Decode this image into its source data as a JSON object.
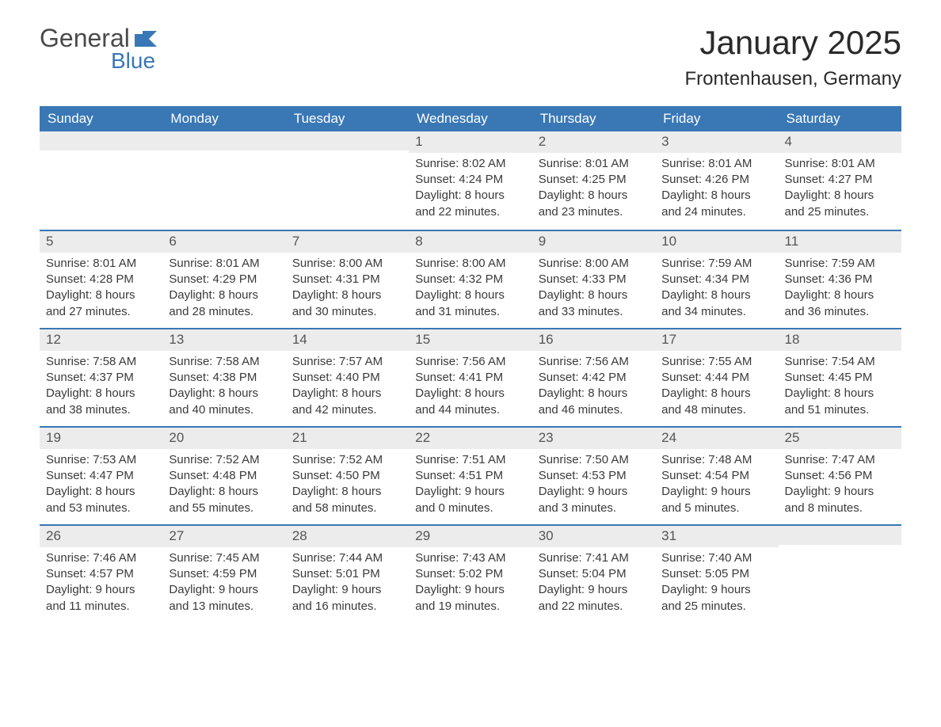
{
  "logo": {
    "text1": "General",
    "text2": "Blue"
  },
  "title": "January 2025",
  "location": "Frontenhausen, Germany",
  "colors": {
    "header_bg": "#3a78b5",
    "header_text": "#ffffff",
    "daynum_bg": "#ececec",
    "body_text": "#3a3a3a",
    "logo_gray": "#4a4a4a",
    "logo_blue": "#3a78b5",
    "border": "#3a78b5"
  },
  "day_headers": [
    "Sunday",
    "Monday",
    "Tuesday",
    "Wednesday",
    "Thursday",
    "Friday",
    "Saturday"
  ],
  "weeks": [
    [
      {
        "day": "",
        "sunrise": "",
        "sunset": "",
        "daylight": ""
      },
      {
        "day": "",
        "sunrise": "",
        "sunset": "",
        "daylight": ""
      },
      {
        "day": "",
        "sunrise": "",
        "sunset": "",
        "daylight": ""
      },
      {
        "day": "1",
        "sunrise": "Sunrise: 8:02 AM",
        "sunset": "Sunset: 4:24 PM",
        "daylight": "Daylight: 8 hours and 22 minutes."
      },
      {
        "day": "2",
        "sunrise": "Sunrise: 8:01 AM",
        "sunset": "Sunset: 4:25 PM",
        "daylight": "Daylight: 8 hours and 23 minutes."
      },
      {
        "day": "3",
        "sunrise": "Sunrise: 8:01 AM",
        "sunset": "Sunset: 4:26 PM",
        "daylight": "Daylight: 8 hours and 24 minutes."
      },
      {
        "day": "4",
        "sunrise": "Sunrise: 8:01 AM",
        "sunset": "Sunset: 4:27 PM",
        "daylight": "Daylight: 8 hours and 25 minutes."
      }
    ],
    [
      {
        "day": "5",
        "sunrise": "Sunrise: 8:01 AM",
        "sunset": "Sunset: 4:28 PM",
        "daylight": "Daylight: 8 hours and 27 minutes."
      },
      {
        "day": "6",
        "sunrise": "Sunrise: 8:01 AM",
        "sunset": "Sunset: 4:29 PM",
        "daylight": "Daylight: 8 hours and 28 minutes."
      },
      {
        "day": "7",
        "sunrise": "Sunrise: 8:00 AM",
        "sunset": "Sunset: 4:31 PM",
        "daylight": "Daylight: 8 hours and 30 minutes."
      },
      {
        "day": "8",
        "sunrise": "Sunrise: 8:00 AM",
        "sunset": "Sunset: 4:32 PM",
        "daylight": "Daylight: 8 hours and 31 minutes."
      },
      {
        "day": "9",
        "sunrise": "Sunrise: 8:00 AM",
        "sunset": "Sunset: 4:33 PM",
        "daylight": "Daylight: 8 hours and 33 minutes."
      },
      {
        "day": "10",
        "sunrise": "Sunrise: 7:59 AM",
        "sunset": "Sunset: 4:34 PM",
        "daylight": "Daylight: 8 hours and 34 minutes."
      },
      {
        "day": "11",
        "sunrise": "Sunrise: 7:59 AM",
        "sunset": "Sunset: 4:36 PM",
        "daylight": "Daylight: 8 hours and 36 minutes."
      }
    ],
    [
      {
        "day": "12",
        "sunrise": "Sunrise: 7:58 AM",
        "sunset": "Sunset: 4:37 PM",
        "daylight": "Daylight: 8 hours and 38 minutes."
      },
      {
        "day": "13",
        "sunrise": "Sunrise: 7:58 AM",
        "sunset": "Sunset: 4:38 PM",
        "daylight": "Daylight: 8 hours and 40 minutes."
      },
      {
        "day": "14",
        "sunrise": "Sunrise: 7:57 AM",
        "sunset": "Sunset: 4:40 PM",
        "daylight": "Daylight: 8 hours and 42 minutes."
      },
      {
        "day": "15",
        "sunrise": "Sunrise: 7:56 AM",
        "sunset": "Sunset: 4:41 PM",
        "daylight": "Daylight: 8 hours and 44 minutes."
      },
      {
        "day": "16",
        "sunrise": "Sunrise: 7:56 AM",
        "sunset": "Sunset: 4:42 PM",
        "daylight": "Daylight: 8 hours and 46 minutes."
      },
      {
        "day": "17",
        "sunrise": "Sunrise: 7:55 AM",
        "sunset": "Sunset: 4:44 PM",
        "daylight": "Daylight: 8 hours and 48 minutes."
      },
      {
        "day": "18",
        "sunrise": "Sunrise: 7:54 AM",
        "sunset": "Sunset: 4:45 PM",
        "daylight": "Daylight: 8 hours and 51 minutes."
      }
    ],
    [
      {
        "day": "19",
        "sunrise": "Sunrise: 7:53 AM",
        "sunset": "Sunset: 4:47 PM",
        "daylight": "Daylight: 8 hours and 53 minutes."
      },
      {
        "day": "20",
        "sunrise": "Sunrise: 7:52 AM",
        "sunset": "Sunset: 4:48 PM",
        "daylight": "Daylight: 8 hours and 55 minutes."
      },
      {
        "day": "21",
        "sunrise": "Sunrise: 7:52 AM",
        "sunset": "Sunset: 4:50 PM",
        "daylight": "Daylight: 8 hours and 58 minutes."
      },
      {
        "day": "22",
        "sunrise": "Sunrise: 7:51 AM",
        "sunset": "Sunset: 4:51 PM",
        "daylight": "Daylight: 9 hours and 0 minutes."
      },
      {
        "day": "23",
        "sunrise": "Sunrise: 7:50 AM",
        "sunset": "Sunset: 4:53 PM",
        "daylight": "Daylight: 9 hours and 3 minutes."
      },
      {
        "day": "24",
        "sunrise": "Sunrise: 7:48 AM",
        "sunset": "Sunset: 4:54 PM",
        "daylight": "Daylight: 9 hours and 5 minutes."
      },
      {
        "day": "25",
        "sunrise": "Sunrise: 7:47 AM",
        "sunset": "Sunset: 4:56 PM",
        "daylight": "Daylight: 9 hours and 8 minutes."
      }
    ],
    [
      {
        "day": "26",
        "sunrise": "Sunrise: 7:46 AM",
        "sunset": "Sunset: 4:57 PM",
        "daylight": "Daylight: 9 hours and 11 minutes."
      },
      {
        "day": "27",
        "sunrise": "Sunrise: 7:45 AM",
        "sunset": "Sunset: 4:59 PM",
        "daylight": "Daylight: 9 hours and 13 minutes."
      },
      {
        "day": "28",
        "sunrise": "Sunrise: 7:44 AM",
        "sunset": "Sunset: 5:01 PM",
        "daylight": "Daylight: 9 hours and 16 minutes."
      },
      {
        "day": "29",
        "sunrise": "Sunrise: 7:43 AM",
        "sunset": "Sunset: 5:02 PM",
        "daylight": "Daylight: 9 hours and 19 minutes."
      },
      {
        "day": "30",
        "sunrise": "Sunrise: 7:41 AM",
        "sunset": "Sunset: 5:04 PM",
        "daylight": "Daylight: 9 hours and 22 minutes."
      },
      {
        "day": "31",
        "sunrise": "Sunrise: 7:40 AM",
        "sunset": "Sunset: 5:05 PM",
        "daylight": "Daylight: 9 hours and 25 minutes."
      },
      {
        "day": "",
        "sunrise": "",
        "sunset": "",
        "daylight": ""
      }
    ]
  ]
}
